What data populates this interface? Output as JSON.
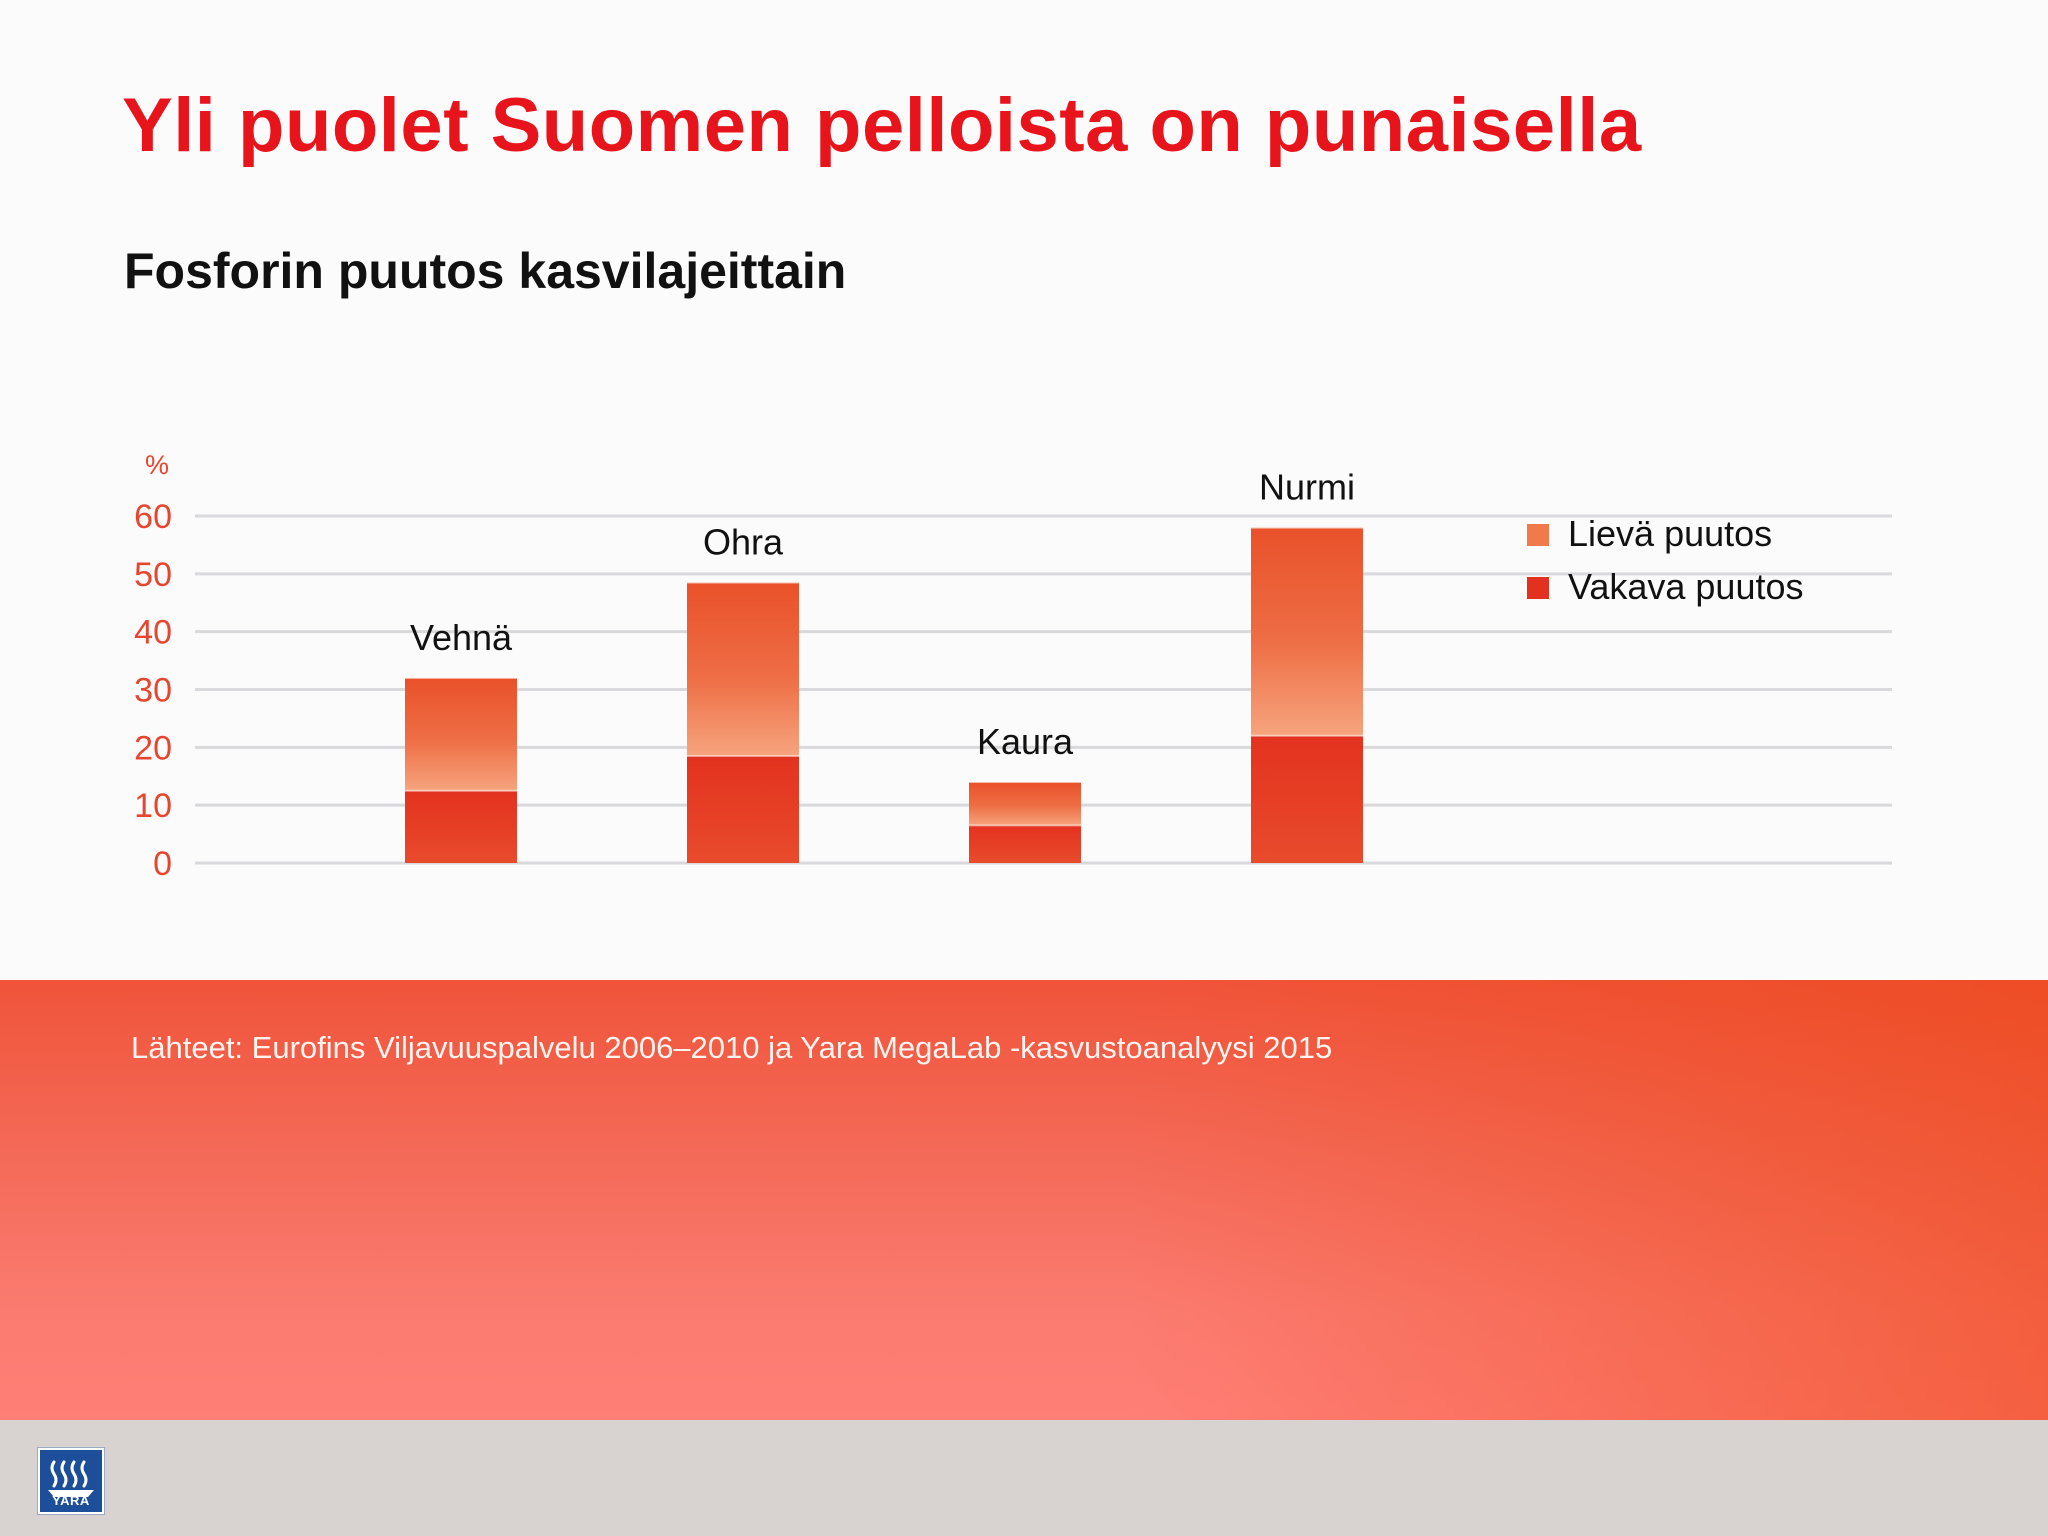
{
  "slide": {
    "title": "Yli puolet Suomen pelloista on  punaisella",
    "subtitle": "Fosforin puutos kasvilajeittain",
    "source": "Lähteet: Eurofins Viljavuuspalvelu 2006–2010 ja Yara MegaLab -kasvustoanalyysi 2015",
    "logo_text": "YARA"
  },
  "chart_data": {
    "type": "bar",
    "stacked": true,
    "y_unit_label": "%",
    "categories": [
      "Vehnä",
      "Ohra",
      "Kaura",
      "Nurmi"
    ],
    "series": [
      {
        "name": "Vakava puutos",
        "values": [
          12.5,
          18.5,
          6.5,
          22
        ],
        "color": "#e3311f"
      },
      {
        "name": "Lievä puutos",
        "values": [
          19.5,
          30,
          7.5,
          36
        ],
        "color": "#f07a4c"
      }
    ],
    "ylim": [
      0,
      60
    ],
    "yticks": [
      0,
      10,
      20,
      30,
      40,
      50,
      60
    ],
    "grid": true,
    "legend_position": "top-right",
    "tick_color": "#e8452e"
  }
}
